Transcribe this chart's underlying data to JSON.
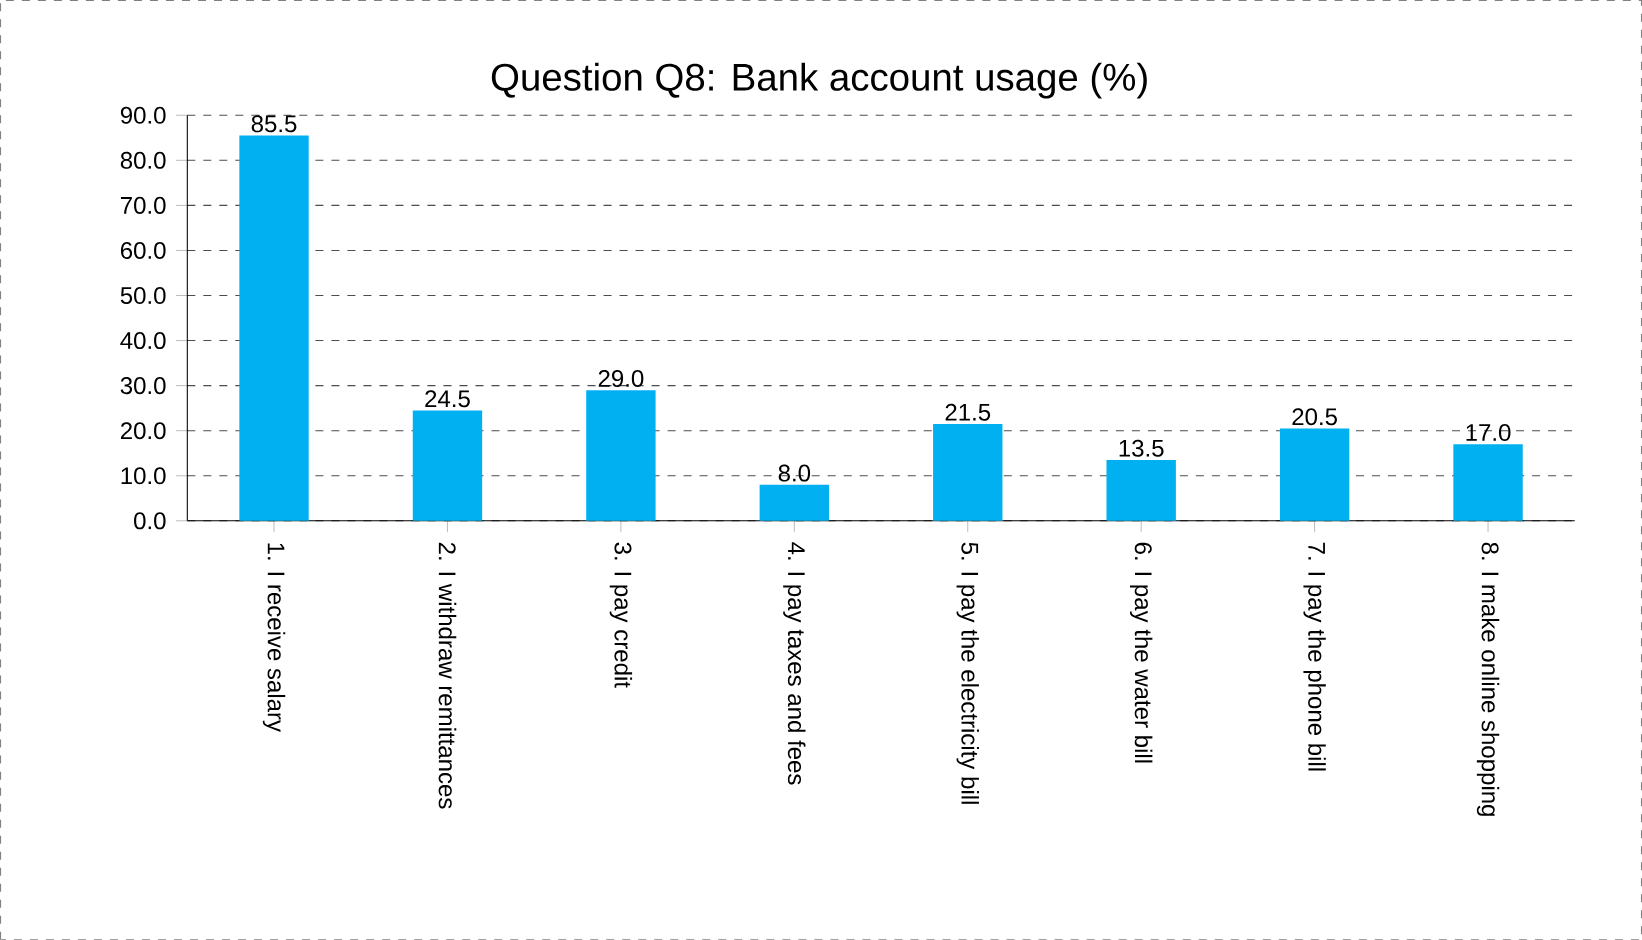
{
  "chart_data": {
    "type": "bar",
    "title": "Question Q8: Bank account usage (%)",
    "categories": [
      "1. I receive salary",
      "2. I withdraw remittances",
      "3. I pay credit",
      "4. I pay taxes and fees",
      "5. I pay the electricity bill",
      "6. I pay the water bill",
      "7. I pay the phone bill",
      "8. I make online shopping"
    ],
    "values": [
      85.5,
      24.5,
      29.0,
      8.0,
      21.5,
      13.5,
      20.5,
      17.0
    ],
    "value_labels": [
      "85.5",
      "24.5",
      "29.0",
      "8.0",
      "21.5",
      "13.5",
      "20.5",
      "17.0"
    ],
    "color": "#00b0f0",
    "ylim": [
      0,
      90
    ],
    "yticks": [
      {
        "value": 0,
        "label": "0.0"
      },
      {
        "value": 10,
        "label": "10.0"
      },
      {
        "value": 20,
        "label": "20.0"
      },
      {
        "value": 30,
        "label": "30.0"
      },
      {
        "value": 40,
        "label": "40.0"
      },
      {
        "value": 50,
        "label": "50.0"
      },
      {
        "value": 60,
        "label": "60.0"
      },
      {
        "value": 70,
        "label": "70.0"
      },
      {
        "value": 80,
        "label": "80.0"
      },
      {
        "value": 90,
        "label": "90.0"
      }
    ],
    "grid": "y"
  }
}
